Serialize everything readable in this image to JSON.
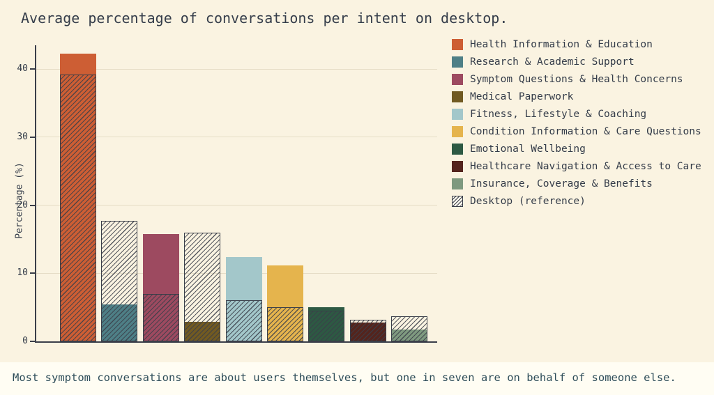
{
  "caption": "Most symptom conversations are about users themselves, but one in seven are on behalf of someone else.",
  "chart_data": {
    "type": "bar",
    "title": "Average percentage of conversations per intent on desktop.",
    "ylabel": "Percentage (%)",
    "xlabel": "",
    "ylim": [
      0,
      43.5
    ],
    "yticks": [
      0,
      10,
      20,
      30,
      40
    ],
    "grid": "horizontal",
    "legend_position": "right",
    "categories": [
      "Health Information & Education",
      "Research & Academic Support",
      "Symptom Questions & Health Concerns",
      "Medical Paperwork",
      "Fitness, Lifestyle & Coaching",
      "Condition Information & Care Questions",
      "Emotional Wellbeing",
      "Healthcare Navigation & Access to Care",
      "Insurance, Coverage & Benefits"
    ],
    "colors": [
      "#cd5e34",
      "#4e7f86",
      "#9d4a60",
      "#715a22",
      "#a3c7ca",
      "#e5b44d",
      "#2d5943",
      "#54241d",
      "#7e997f"
    ],
    "series": [
      {
        "name": "values",
        "values": [
          42.3,
          5.4,
          15.8,
          2.9,
          12.4,
          11.2,
          5.0,
          2.8,
          1.7
        ]
      },
      {
        "name": "Desktop (reference)",
        "values": [
          39.2,
          17.7,
          7.0,
          16.0,
          6.0,
          5.0,
          4.5,
          3.2,
          3.7
        ]
      }
    ]
  },
  "legend": {
    "items": [
      {
        "label": "Health Information & Education",
        "color": "#cd5e34",
        "hatched": false
      },
      {
        "label": "Research & Academic Support",
        "color": "#4e7f86",
        "hatched": false
      },
      {
        "label": "Symptom Questions & Health Concerns",
        "color": "#9d4a60",
        "hatched": false
      },
      {
        "label": "Medical Paperwork",
        "color": "#715a22",
        "hatched": false
      },
      {
        "label": "Fitness, Lifestyle & Coaching",
        "color": "#a3c7ca",
        "hatched": false
      },
      {
        "label": "Condition Information & Care Questions",
        "color": "#e5b44d",
        "hatched": false
      },
      {
        "label": "Emotional Wellbeing",
        "color": "#2d5943",
        "hatched": false
      },
      {
        "label": "Healthcare Navigation & Access to Care",
        "color": "#54241d",
        "hatched": false
      },
      {
        "label": "Insurance, Coverage & Benefits",
        "color": "#7e997f",
        "hatched": false
      },
      {
        "label": "Desktop (reference)",
        "color": "",
        "hatched": true
      }
    ]
  }
}
